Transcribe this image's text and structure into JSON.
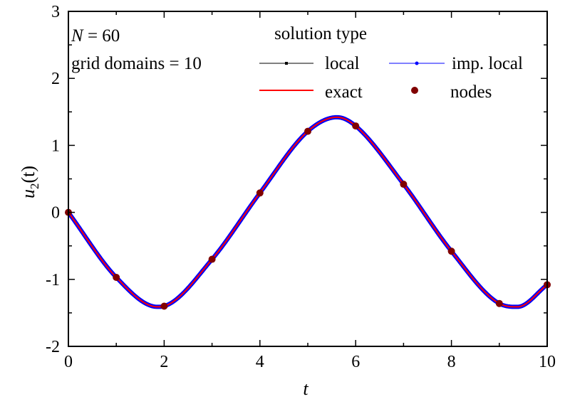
{
  "chart_data": {
    "type": "line",
    "xlabel": "t",
    "ylabel": {
      "base": "u",
      "sub": "2",
      "rest": "(t)"
    },
    "xlim": [
      0,
      10
    ],
    "ylim": [
      -2,
      3
    ],
    "xticks": [
      "0",
      "2",
      "4",
      "6",
      "8",
      "10"
    ],
    "yticks": [
      "-2",
      "-1",
      "0",
      "1",
      "2",
      "3"
    ],
    "grid": false,
    "annotations": {
      "n_label": "N",
      "n_value": " = 60",
      "domains": "grid domains = 10"
    },
    "legend": {
      "title": "solution type",
      "placement": "top",
      "entries": [
        {
          "name": "local",
          "color": "#000000",
          "style": "line-square"
        },
        {
          "name": "imp. local",
          "color": "#0000ff",
          "style": "line-dot"
        },
        {
          "name": "exact",
          "color": "#ff0000",
          "style": "line"
        },
        {
          "name": "nodes",
          "color": "#800000",
          "style": "marker"
        }
      ]
    },
    "series": [
      {
        "name": "local",
        "color": "#000000",
        "x": [
          0,
          1,
          1.86,
          2,
          3,
          4,
          5,
          5.61,
          6,
          7,
          8,
          9,
          9.38,
          10
        ],
        "y": [
          0,
          -0.97,
          -1.41,
          -1.4,
          -0.7,
          0.29,
          1.21,
          1.42,
          1.29,
          0.42,
          -0.58,
          -1.36,
          -1.41,
          -1.08
        ]
      },
      {
        "name": "imp. local",
        "color": "#0000ff",
        "x": [
          0,
          1,
          1.86,
          2,
          3,
          4,
          5,
          5.61,
          6,
          7,
          8,
          9,
          9.38,
          10
        ],
        "y": [
          0,
          -0.97,
          -1.41,
          -1.4,
          -0.7,
          0.29,
          1.21,
          1.42,
          1.29,
          0.42,
          -0.58,
          -1.36,
          -1.41,
          -1.08
        ]
      },
      {
        "name": "exact",
        "color": "#ff0000",
        "x": [
          0,
          1,
          1.86,
          2,
          3,
          4,
          5,
          5.61,
          6,
          7,
          8,
          9,
          9.38,
          10
        ],
        "y": [
          0,
          -0.97,
          -1.41,
          -1.4,
          -0.7,
          0.29,
          1.21,
          1.42,
          1.29,
          0.42,
          -0.58,
          -1.36,
          -1.41,
          -1.08
        ]
      },
      {
        "name": "nodes",
        "color": "#800000",
        "x": [
          0,
          1,
          2,
          3,
          4,
          5,
          6,
          7,
          8,
          9,
          10
        ],
        "y": [
          0,
          -0.97,
          -1.4,
          -0.7,
          0.29,
          1.21,
          1.29,
          0.42,
          -0.58,
          -1.36,
          -1.08
        ]
      }
    ]
  }
}
